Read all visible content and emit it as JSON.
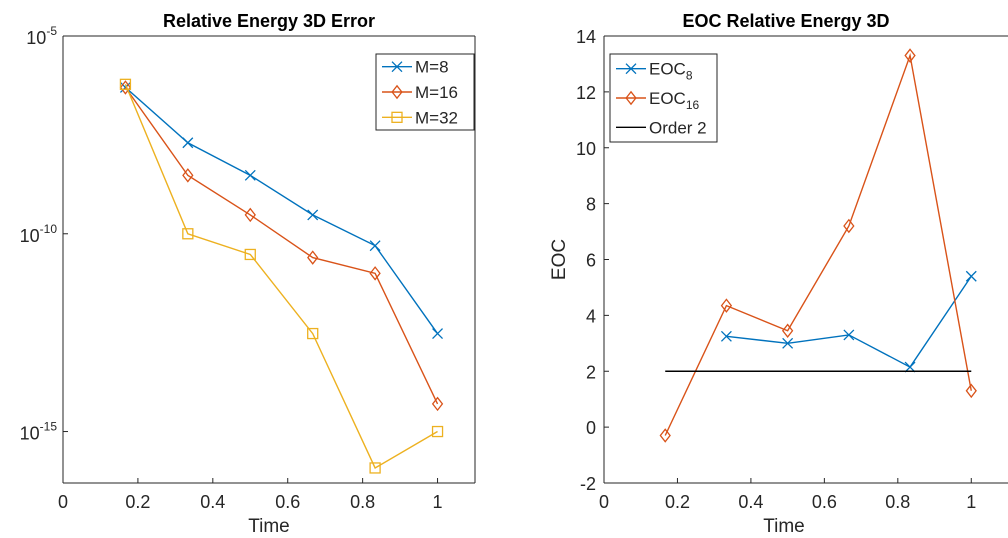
{
  "chart_data": [
    {
      "type": "line",
      "title": "Relative Energy 3D Error",
      "xlabel": "Time",
      "ylabel": "",
      "xlim": [
        0,
        1.1
      ],
      "ylim": [
        5e-17,
        1e-05
      ],
      "yscale": "log",
      "xticks": [
        0,
        0.2,
        0.4,
        0.6,
        0.8,
        1
      ],
      "xtick_labels": [
        "0",
        "0.2",
        "0.4",
        "0.6",
        "0.8",
        "1"
      ],
      "yticks": [
        1e-15,
        1e-10,
        1e-05
      ],
      "ytick_labels": [
        {
          "base": "10",
          "exp": "-15"
        },
        {
          "base": "10",
          "exp": "-10"
        },
        {
          "base": "10",
          "exp": "-5"
        }
      ],
      "grid": false,
      "legend": "top-right",
      "series": [
        {
          "name": "M=8",
          "color": "#0072BD",
          "marker": "x",
          "x": [
            0.1667,
            0.3333,
            0.5,
            0.6667,
            0.8333,
            1.0
          ],
          "y": [
            5e-07,
            2e-08,
            3e-09,
            3e-10,
            5e-11,
            3e-13
          ]
        },
        {
          "name": "M=16",
          "color": "#D95319",
          "marker": "diamond",
          "x": [
            0.1667,
            0.3333,
            0.5,
            0.6667,
            0.8333,
            1.0
          ],
          "y": [
            5e-07,
            3e-09,
            3e-10,
            2.5e-11,
            1e-11,
            5e-15
          ]
        },
        {
          "name": "M=32",
          "color": "#EDB120",
          "marker": "square",
          "x": [
            0.1667,
            0.3333,
            0.5,
            0.6667,
            0.8333,
            1.0
          ],
          "y": [
            6e-07,
            1e-10,
            3e-11,
            3e-13,
            1.2e-16,
            1e-15
          ]
        }
      ]
    },
    {
      "type": "line",
      "title": "EOC Relative Energy 3D",
      "xlabel": "Time",
      "ylabel": "EOC",
      "xlim": [
        0,
        1.1
      ],
      "ylim": [
        -2,
        14
      ],
      "xticks": [
        0,
        0.2,
        0.4,
        0.6,
        0.8,
        1
      ],
      "xtick_labels": [
        "0",
        "0.2",
        "0.4",
        "0.6",
        "0.8",
        "1"
      ],
      "yticks": [
        -2,
        0,
        2,
        4,
        6,
        8,
        10,
        12,
        14
      ],
      "ytick_labels": [
        "-2",
        "0",
        "2",
        "4",
        "6",
        "8",
        "10",
        "12",
        "14"
      ],
      "grid": false,
      "legend": "top-left",
      "series": [
        {
          "name": "EOC",
          "sub": "8",
          "color": "#0072BD",
          "marker": "x",
          "x": [
            0.3333,
            0.5,
            0.6667,
            0.8333,
            1.0
          ],
          "y": [
            3.25,
            3.0,
            3.3,
            2.15,
            5.4
          ]
        },
        {
          "name": "EOC",
          "sub": "16",
          "color": "#D95319",
          "marker": "diamond",
          "x": [
            0.1667,
            0.3333,
            0.5,
            0.6667,
            0.8333,
            1.0
          ],
          "y": [
            -0.3,
            4.35,
            3.45,
            7.2,
            13.3,
            1.3
          ]
        },
        {
          "name": "Order 2",
          "color": "#000000",
          "marker": "none",
          "x": [
            0.1667,
            1.0
          ],
          "y": [
            2,
            2
          ]
        }
      ]
    }
  ]
}
